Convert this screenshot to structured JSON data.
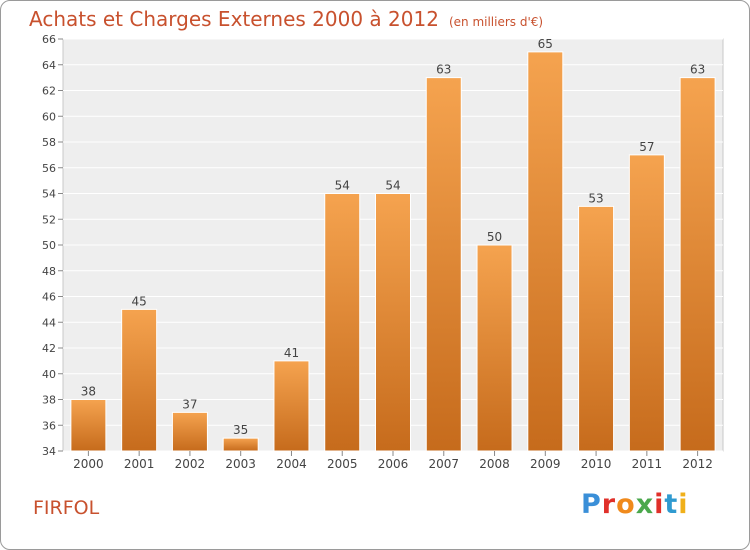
{
  "header": {
    "title": "Achats et Charges Externes 2000 à 2012",
    "unit": "(en milliers d'€)"
  },
  "footer": {
    "commune": "FIRFOL",
    "logo": [
      "P",
      "r",
      "o",
      "x",
      "i",
      "t",
      "i"
    ],
    "logo_colors": [
      "#3a8fd8",
      "#e0302a",
      "#f08a1c",
      "#4aa84c",
      "#e0302a",
      "#2f9ad0",
      "#f0b01a"
    ]
  },
  "chart_data": {
    "type": "bar",
    "categories": [
      "2000",
      "2001",
      "2002",
      "2003",
      "2004",
      "2005",
      "2006",
      "2007",
      "2008",
      "2009",
      "2010",
      "2011",
      "2012"
    ],
    "values": [
      38,
      45,
      37,
      35,
      41,
      54,
      54,
      63,
      50,
      65,
      53,
      57,
      63
    ],
    "title": "Achats et Charges Externes 2000 à 2012",
    "ylim": [
      34,
      66
    ],
    "yticks": [
      34,
      36,
      38,
      40,
      42,
      44,
      46,
      48,
      50,
      52,
      54,
      56,
      58,
      60,
      62,
      64,
      66
    ],
    "grid": true,
    "bar_color_top": "#f5a34f",
    "bar_color_bottom": "#c66b1c",
    "background_color": "#eeeeee"
  }
}
